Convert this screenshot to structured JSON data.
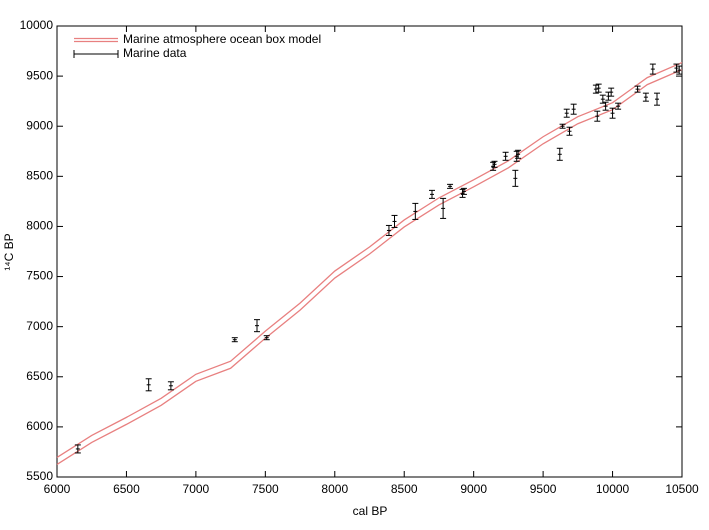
{
  "chart_data": {
    "type": "line",
    "x_label": "cal BP",
    "y_label": "¹⁴C BP",
    "xlim": [
      6000,
      10500
    ],
    "ylim": [
      5500,
      10000
    ],
    "xticks": [
      6000,
      6500,
      7000,
      7500,
      8000,
      8500,
      9000,
      9500,
      10000,
      10500
    ],
    "yticks": [
      5500,
      6000,
      6500,
      7000,
      7500,
      8000,
      8500,
      9000,
      9500,
      10000
    ],
    "series": [
      {
        "name": "Marine atmosphere ocean box model",
        "color": "#e88080",
        "x": [
          6000,
          6250,
          6500,
          6750,
          7000,
          7250,
          7500,
          7750,
          8000,
          8250,
          8500,
          8750,
          9000,
          9250,
          9500,
          9750,
          10000,
          10250,
          10500
        ],
        "upper": [
          5695,
          5915,
          6095,
          6285,
          6525,
          6655,
          6955,
          7235,
          7555,
          7795,
          8065,
          8285,
          8465,
          8655,
          8895,
          9095,
          9235,
          9485,
          9635
        ],
        "lower": [
          5625,
          5845,
          6025,
          6215,
          6455,
          6585,
          6885,
          7165,
          7485,
          7725,
          7995,
          8215,
          8395,
          8585,
          8825,
          9025,
          9165,
          9415,
          9565
        ]
      },
      {
        "name": "Marine data",
        "color": "#000000",
        "x": [
          6150,
          6660,
          6820,
          7280,
          7440,
          7510,
          8390,
          8430,
          8580,
          8700,
          8780,
          8830,
          8920,
          8930,
          9140,
          9150,
          9230,
          9300,
          9310,
          9320,
          9620,
          9640,
          9670,
          9690,
          9720,
          9880,
          9890,
          9900,
          9930,
          9950,
          9970,
          9990,
          10000,
          10040,
          10180,
          10240,
          10290,
          10320,
          10460,
          10480
        ],
        "values": [
          5780,
          6420,
          6410,
          6870,
          7010,
          6890,
          7960,
          8050,
          8150,
          8320,
          8180,
          8400,
          8330,
          8350,
          8600,
          8620,
          8700,
          8480,
          8700,
          8720,
          8720,
          9000,
          9130,
          8950,
          9170,
          9370,
          9100,
          9380,
          9270,
          9200,
          9300,
          9340,
          9130,
          9200,
          9370,
          9290,
          9570,
          9270,
          9580,
          9560
        ],
        "errors": [
          40,
          60,
          40,
          20,
          60,
          20,
          50,
          60,
          80,
          40,
          100,
          20,
          40,
          30,
          40,
          30,
          40,
          80,
          50,
          40,
          60,
          20,
          40,
          40,
          50,
          40,
          50,
          40,
          40,
          40,
          40,
          40,
          50,
          30,
          30,
          40,
          50,
          60,
          40,
          40
        ]
      }
    ]
  }
}
